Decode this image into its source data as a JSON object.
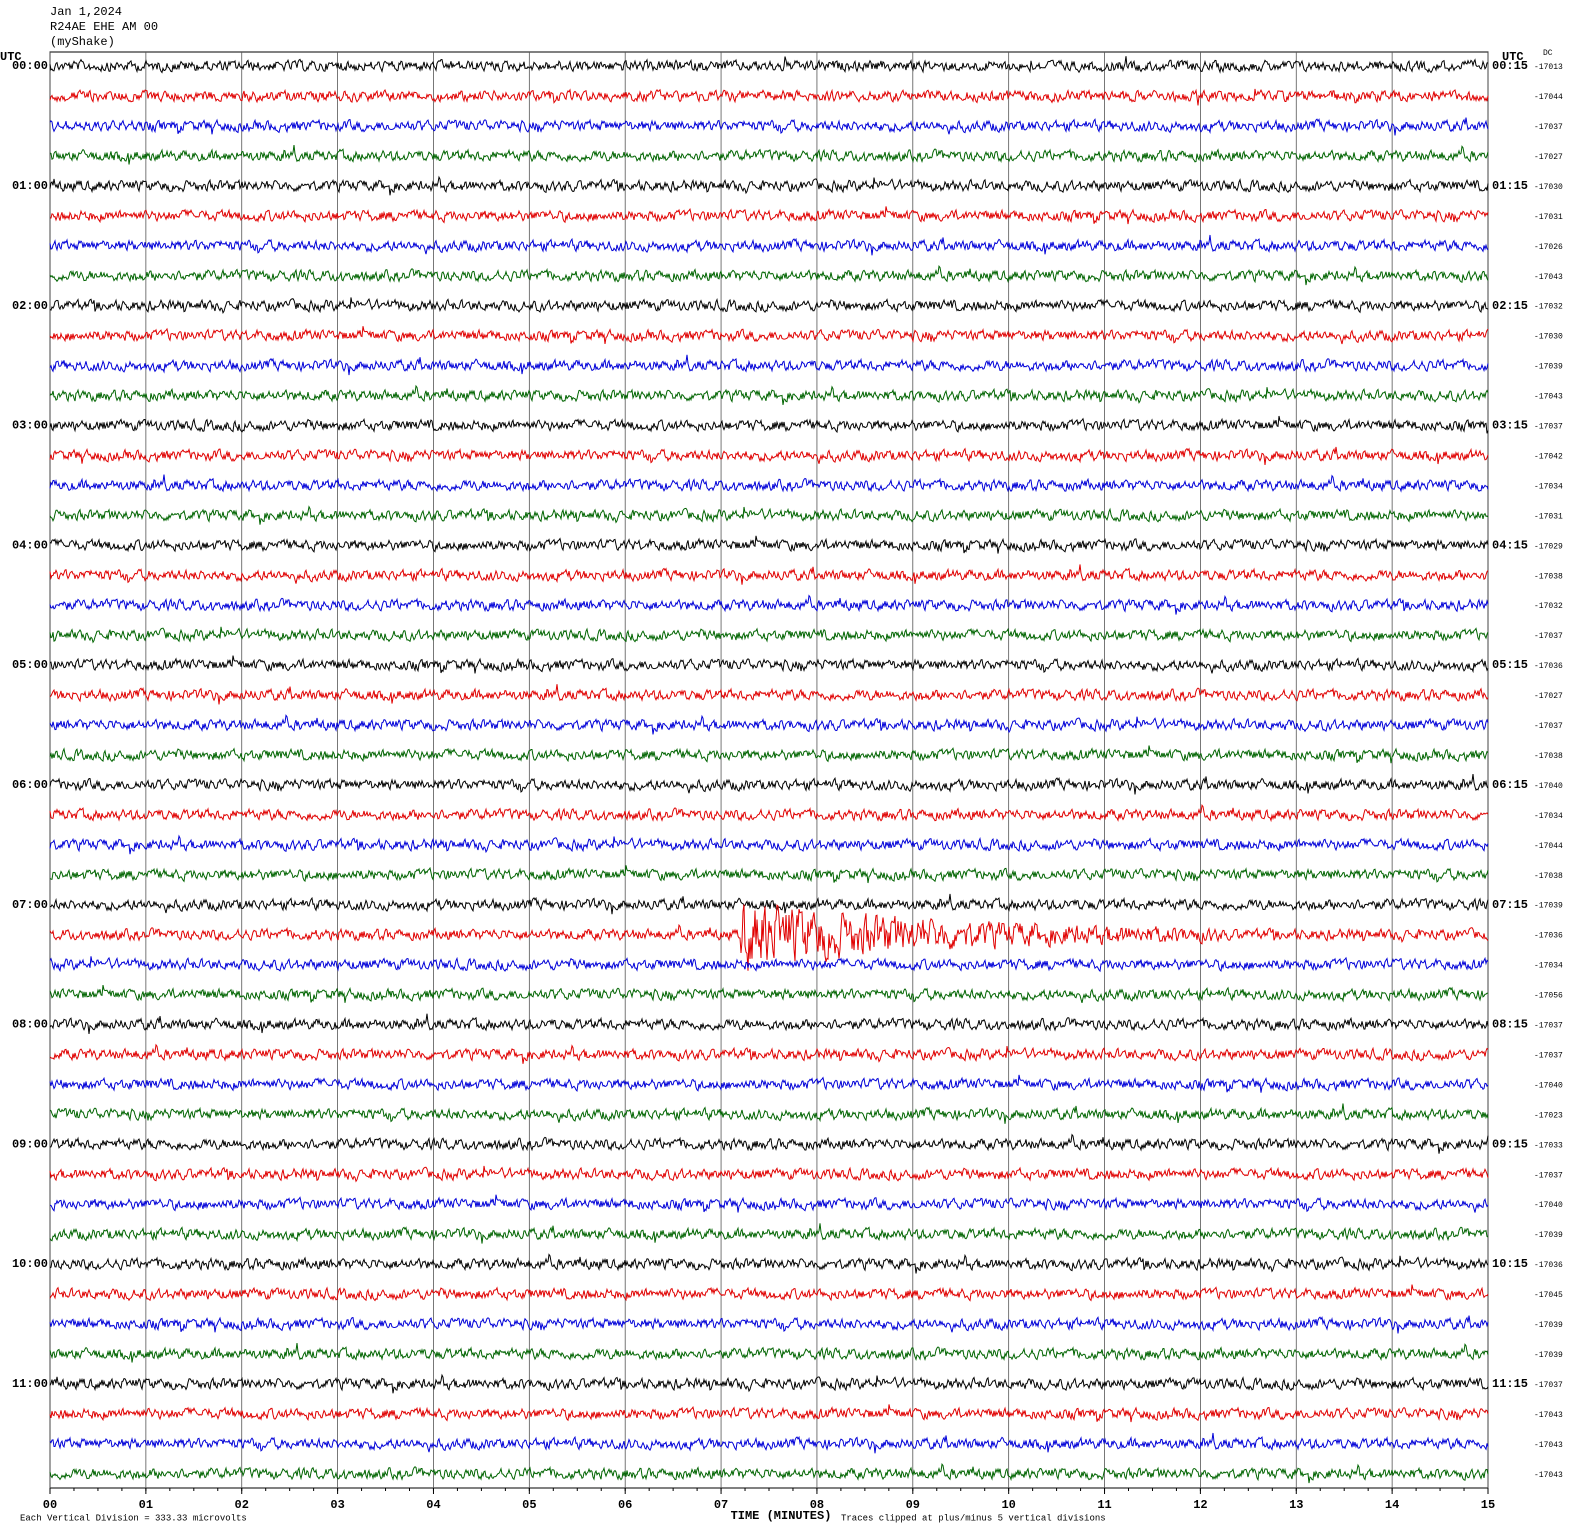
{
  "chart_data": {
    "type": "helicorder",
    "title_lines": [
      "Jan 1,2024",
      "R24AE EHE AM 00",
      "(myShake)"
    ],
    "left_axis_title": "UTC",
    "right_axis_title": "UTC",
    "dc_title": "DC",
    "left_labels": [
      "00:00",
      "01:00",
      "02:00",
      "03:00",
      "04:00",
      "05:00",
      "06:00",
      "07:00",
      "08:00",
      "09:00",
      "10:00",
      "11:00"
    ],
    "right_labels": [
      "00:15",
      "01:15",
      "02:15",
      "03:15",
      "04:15",
      "05:15",
      "06:15",
      "07:15",
      "08:15",
      "09:15",
      "10:15",
      "11:15"
    ],
    "dc_values": [
      -17013,
      -17044,
      -17037,
      -17027,
      -17030,
      -17031,
      -17026,
      -17043,
      -17032,
      -17030,
      -17039,
      -17043,
      -17037,
      -17042,
      -17034,
      -17031,
      -17029,
      -17038,
      -17032,
      -17037,
      -17036,
      -17027,
      -17037,
      -17038,
      -17040,
      -17034,
      -17044,
      -17038,
      -17039,
      -17036,
      -17034,
      -17056,
      -17037,
      -17037,
      -17040,
      -17023,
      -17033,
      -17037,
      -17040,
      -17039,
      -17036,
      -17045,
      -17039,
      -17039,
      -17037,
      -17043,
      -17043,
      -17043
    ],
    "trace_colors": [
      "#000000",
      "#e00000",
      "#0000d8",
      "#006400"
    ],
    "xlim": [
      0,
      15
    ],
    "xticks": [
      {
        "value": 0,
        "label": "00"
      },
      {
        "value": 1,
        "label": "01"
      },
      {
        "value": 2,
        "label": "02"
      },
      {
        "value": 3,
        "label": "03"
      },
      {
        "value": 4,
        "label": "04"
      },
      {
        "value": 5,
        "label": "05"
      },
      {
        "value": 6,
        "label": "06"
      },
      {
        "value": 7,
        "label": "07"
      },
      {
        "value": 8,
        "label": "08"
      },
      {
        "value": 9,
        "label": "09"
      },
      {
        "value": 10,
        "label": "10"
      },
      {
        "value": 11,
        "label": "11"
      },
      {
        "value": 12,
        "label": "12"
      },
      {
        "value": 13,
        "label": "13"
      },
      {
        "value": 14,
        "label": "14"
      },
      {
        "value": 15,
        "label": "15"
      }
    ],
    "xlabel": "TIME (MINUTES)",
    "scale_note": "Each Vertical Division =  333.33 microvolts",
    "clip_note": "Traces clipped at plus/minus 5 vertical divisions",
    "grid": true
  }
}
